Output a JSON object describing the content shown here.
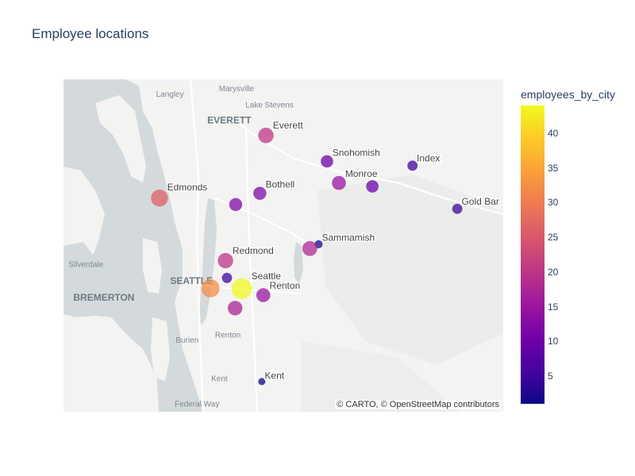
{
  "title": "Employee locations",
  "attribution": "© CARTO, © OpenStreetMap contributors",
  "colorbar": {
    "title": "employees_by_city",
    "min": 1,
    "max": 44,
    "ticks": [
      5,
      10,
      15,
      20,
      25,
      30,
      35,
      40
    ],
    "colorscale": [
      "#0d0887",
      "#46039f",
      "#7201a8",
      "#9c179e",
      "#bd3786",
      "#d8576b",
      "#ed7953",
      "#fb9f3a",
      "#fdca26",
      "#f0f921"
    ]
  },
  "map_labels": [
    {
      "text": "Marysville",
      "lon": -122.177,
      "lat": 48.052,
      "kind": "town"
    },
    {
      "text": "Langley",
      "lon": -122.406,
      "lat": 48.04,
      "kind": "town"
    },
    {
      "text": "Lake Stevens",
      "lon": -122.064,
      "lat": 48.015,
      "kind": "town"
    },
    {
      "text": "EVERETT",
      "lon": -122.202,
      "lat": 47.978,
      "kind": "city"
    },
    {
      "text": "Silverdale",
      "lon": -122.695,
      "lat": 47.645,
      "kind": "town"
    },
    {
      "text": "SEATTLE",
      "lon": -122.332,
      "lat": 47.606,
      "kind": "city"
    },
    {
      "text": "BREMERTON",
      "lon": -122.633,
      "lat": 47.567,
      "kind": "city"
    },
    {
      "text": "Burien",
      "lon": -122.347,
      "lat": 47.47,
      "kind": "town"
    },
    {
      "text": "Renton",
      "lon": -122.207,
      "lat": 47.482,
      "kind": "town"
    },
    {
      "text": "Kent",
      "lon": -122.236,
      "lat": 47.381,
      "kind": "town"
    },
    {
      "text": "Federal Way",
      "lon": -122.313,
      "lat": 47.322,
      "kind": "town"
    }
  ],
  "points": [
    {
      "city": "Everett",
      "lon": -122.076,
      "lat": 47.95,
      "employees": 20
    },
    {
      "city": "Snohomish",
      "lon": -121.866,
      "lat": 47.89,
      "employees": 10
    },
    {
      "city": "Index",
      "lon": -121.572,
      "lat": 47.88,
      "employees": 5
    },
    {
      "city": "Monroe",
      "lon": -121.825,
      "lat": 47.84,
      "employees": 15
    },
    {
      "city": "",
      "lon": -121.71,
      "lat": 47.832,
      "employees": 10
    },
    {
      "city": "Bothell",
      "lon": -122.097,
      "lat": 47.816,
      "employees": 12
    },
    {
      "city": "",
      "lon": -122.18,
      "lat": 47.79,
      "employees": 12
    },
    {
      "city": "Edmonds",
      "lon": -122.442,
      "lat": 47.805,
      "employees": 26
    },
    {
      "city": "Gold Bar",
      "lon": -121.418,
      "lat": 47.78,
      "employees": 5
    },
    {
      "city": "Sammamish",
      "lon": -121.895,
      "lat": 47.698,
      "employees": 2
    },
    {
      "city": "",
      "lon": -121.925,
      "lat": 47.688,
      "employees": 18
    },
    {
      "city": "Redmond",
      "lon": -122.215,
      "lat": 47.66,
      "employees": 20
    },
    {
      "city": "",
      "lon": -122.21,
      "lat": 47.62,
      "employees": 5
    },
    {
      "city": "Seattle",
      "lon": -122.159,
      "lat": 47.595,
      "employees": 44
    },
    {
      "city": "",
      "lon": -122.267,
      "lat": 47.596,
      "employees": 32
    },
    {
      "city": "Renton",
      "lon": -122.085,
      "lat": 47.58,
      "employees": 15
    },
    {
      "city": "",
      "lon": -122.182,
      "lat": 47.55,
      "employees": 17
    },
    {
      "city": "Kent",
      "lon": -122.09,
      "lat": 47.38,
      "employees": 1
    }
  ]
}
